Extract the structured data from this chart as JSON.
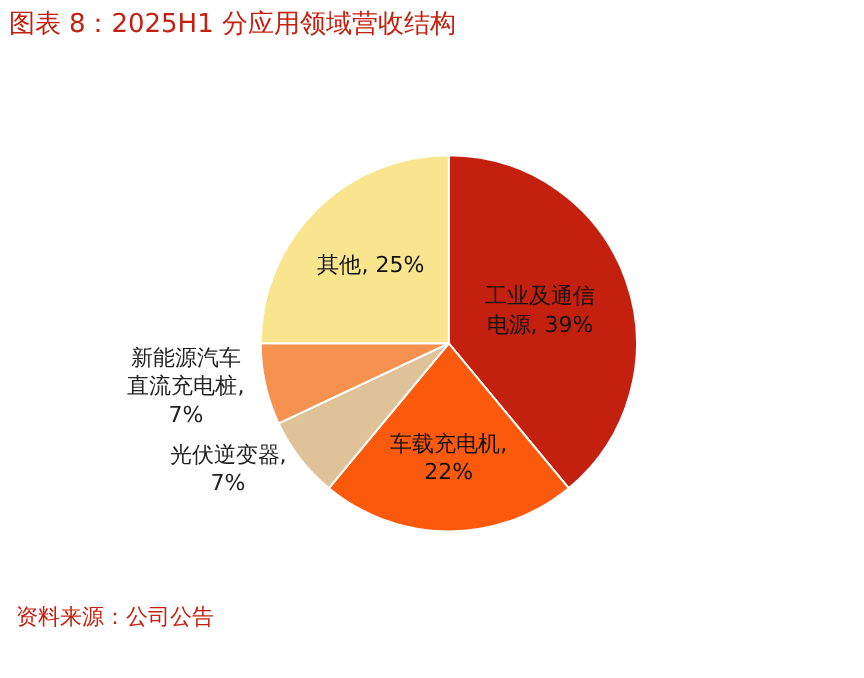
{
  "chart_data": {
    "type": "pie",
    "title": "图表 8：2025H1 分应用领域营收结构",
    "categories": [
      "工业及通信电源",
      "车载充电机",
      "光伏逆变器",
      "新能源汽车直流充电桩",
      "其他"
    ],
    "values": [
      39,
      22,
      7,
      7,
      25
    ],
    "colors": [
      "#c3200f",
      "#fb5a0c",
      "#dfc298",
      "#f6924f",
      "#f8e58e"
    ],
    "value_labels": [
      ", 39%",
      ", 22%",
      ", 7%",
      ", 7%",
      ", 25%"
    ],
    "legend": false,
    "annotations": [
      "资料来源：公司公告"
    ]
  }
}
